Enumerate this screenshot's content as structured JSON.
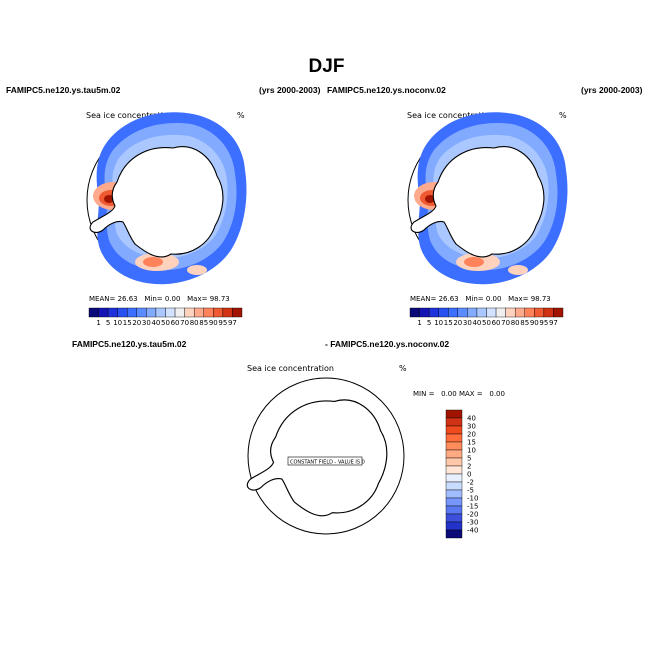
{
  "season": "DJF",
  "left_panel": {
    "case": "FAMIPC5.ne120.ys.tau5m.02",
    "years": "(yrs 2000-2003)",
    "title": "Sea ice concentration",
    "units": "%",
    "mean_label": "MEAN=",
    "mean_value": "26.63",
    "min_label": "Min=",
    "min_value": "0.00",
    "max_label": "Max=",
    "max_value": "98.73"
  },
  "right_panel": {
    "case": "FAMIPC5.ne120.ys.noconv.02",
    "years": "(yrs 2000-2003)",
    "title": "Sea ice concentration",
    "units": "%",
    "mean_label": "MEAN=",
    "mean_value": "26.63",
    "min_label": "Min=",
    "min_value": "0.00",
    "max_label": "Max=",
    "max_value": "98.73"
  },
  "diff_panel": {
    "case_a": "FAMIPC5.ne120.ys.tau5m.02",
    "case_b": "- FAMIPC5.ne120.ys.noconv.02",
    "title": "Sea ice concentration",
    "units": "%",
    "min_label": "MIN =",
    "min_value": "0.00",
    "max_label": "MAX =",
    "max_value": "0.00",
    "constant_note": "CONSTANT FIELD - VALUE IS 0"
  },
  "field_colorbar": {
    "levels": [
      "1",
      "5",
      "10",
      "15",
      "20",
      "30",
      "40",
      "50",
      "60",
      "70",
      "80",
      "85",
      "90",
      "95",
      "97"
    ],
    "colors": [
      "#0a0a78",
      "#1414b4",
      "#1e32dc",
      "#2850f0",
      "#3c6eff",
      "#5a8cff",
      "#82aaff",
      "#aac8ff",
      "#d2e1ff",
      "#f0f0f0",
      "#ffd2be",
      "#ffaa8c",
      "#ff825a",
      "#f05a32",
      "#d23214",
      "#a01400"
    ]
  },
  "diff_colorbar": {
    "levels": [
      "40",
      "30",
      "20",
      "15",
      "10",
      "5",
      "2",
      "0",
      "-2",
      "-5",
      "-10",
      "-15",
      "-20",
      "-30",
      "-40"
    ],
    "colors": [
      "#a01400",
      "#d23214",
      "#f04b1e",
      "#ff6e3c",
      "#ff8c5a",
      "#ffaa82",
      "#ffc8aa",
      "#ffe6d7",
      "#e6f0ff",
      "#c8dcff",
      "#a0beff",
      "#7896ff",
      "#5a78f0",
      "#3c50dc",
      "#2332c8",
      "#0a0a78"
    ]
  }
}
